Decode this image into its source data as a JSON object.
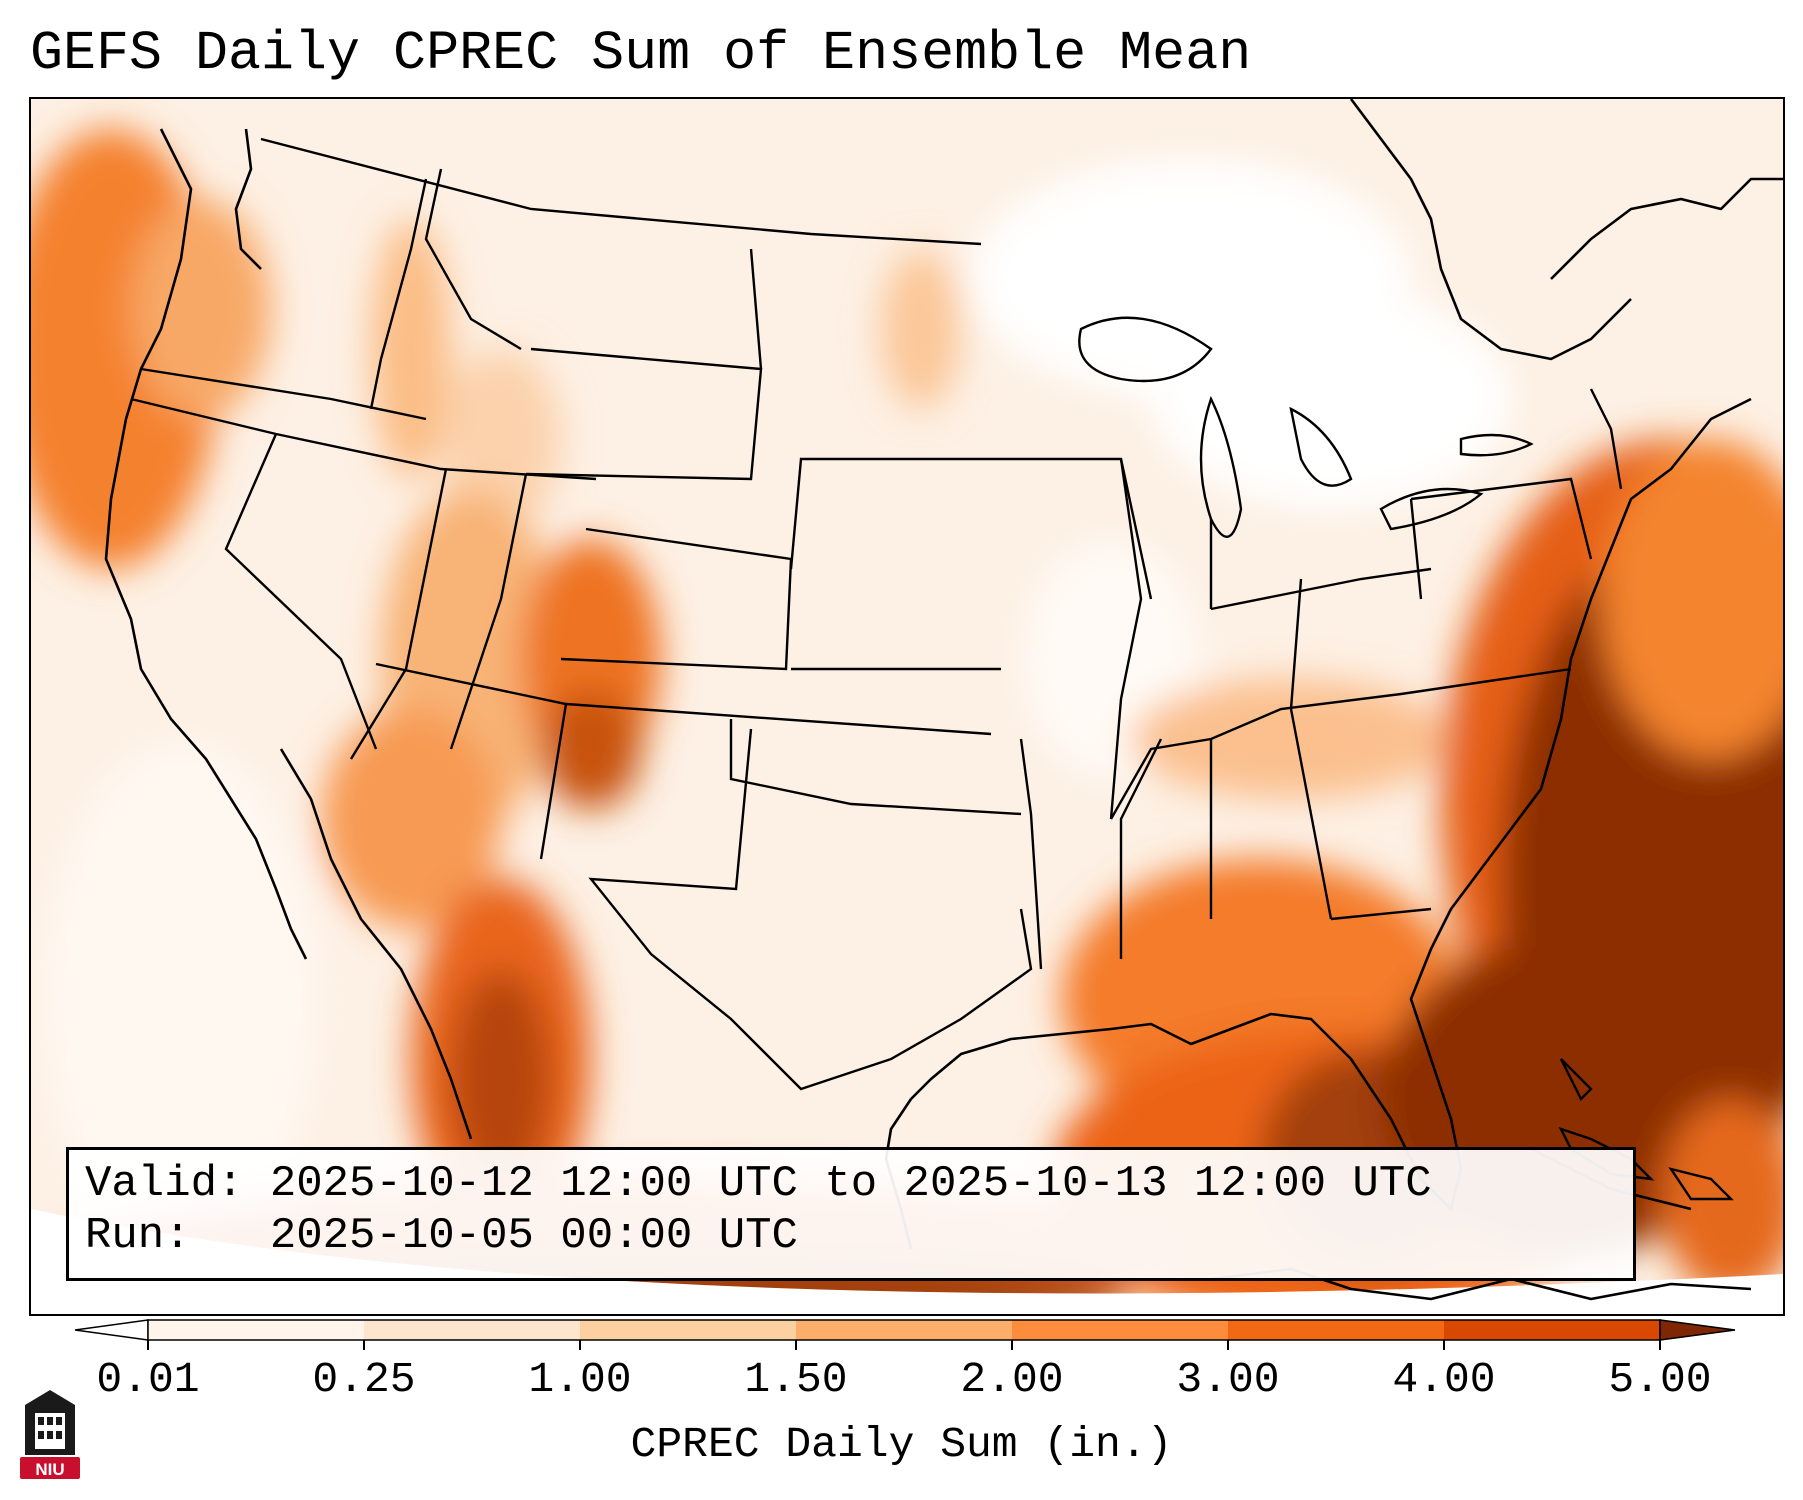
{
  "title": "GEFS Daily CPREC Sum of Ensemble Mean",
  "info": {
    "valid_label": "Valid:",
    "valid_value": "2025-10-12 12:00 UTC to 2025-10-13 12:00 UTC",
    "run_label": "Run:",
    "run_value": "2025-10-05 00:00 UTC"
  },
  "colorbar": {
    "label": "CPREC Daily Sum (in.)",
    "levels": [
      "0.01",
      "0.25",
      "1.00",
      "1.50",
      "2.00",
      "3.00",
      "4.00",
      "5.00"
    ],
    "colors": [
      "#fff5eb",
      "#fee6ce",
      "#fdd0a2",
      "#fdae6b",
      "#fd8d3c",
      "#f16913",
      "#d94801",
      "#8c2d04"
    ],
    "under_color": "#ffffff",
    "over_color": "#7f2704"
  },
  "logo": {
    "text": "NIU",
    "color": "#c8102e"
  }
}
